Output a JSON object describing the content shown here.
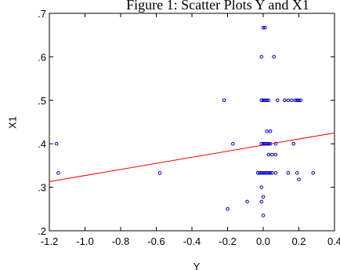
{
  "chart_data": {
    "type": "scatter",
    "title": "Figure 1: Scatter Plots  Y and X1",
    "xlabel": "Y",
    "ylabel": "X1",
    "xlim": [
      -1.2,
      0.4
    ],
    "ylim": [
      0.2,
      0.7
    ],
    "grid": false,
    "x_ticks": [
      -1.2,
      -1.0,
      -0.8,
      -0.6,
      -0.4,
      -0.2,
      0.0,
      0.2,
      0.4
    ],
    "x_tick_labels": [
      "-1.2",
      "-1.0",
      "-0.8",
      "-0.6",
      "-0.4",
      "-0.2",
      "0.0",
      "0.2",
      "0.4"
    ],
    "y_ticks": [
      0.2,
      0.3,
      0.4,
      0.5,
      0.6,
      0.7
    ],
    "y_tick_labels": [
      ".2",
      ".3",
      ".4",
      ".5",
      ".6",
      ".7"
    ],
    "point_color": "#0000cc",
    "fit_line_color": "#ff0000",
    "fit_line": {
      "x": [
        -1.2,
        0.4
      ],
      "y": [
        0.313,
        0.425
      ]
    },
    "points": [
      [
        -1.16,
        0.4
      ],
      [
        -1.15,
        0.333
      ],
      [
        -0.58,
        0.333
      ],
      [
        -0.22,
        0.5
      ],
      [
        -0.17,
        0.4
      ],
      [
        -0.2,
        0.25
      ],
      [
        -0.09,
        0.267
      ],
      [
        -0.03,
        0.333
      ],
      [
        -0.02,
        0.333
      ],
      [
        -0.01,
        0.333
      ],
      [
        0.0,
        0.333
      ],
      [
        0.01,
        0.333
      ],
      [
        0.02,
        0.333
      ],
      [
        0.03,
        0.333
      ],
      [
        0.04,
        0.333
      ],
      [
        0.05,
        0.333
      ],
      [
        0.07,
        0.333
      ],
      [
        0.14,
        0.333
      ],
      [
        0.19,
        0.333
      ],
      [
        0.28,
        0.333
      ],
      [
        -0.01,
        0.6
      ],
      [
        0.06,
        0.6
      ],
      [
        0.0,
        0.667
      ],
      [
        0.01,
        0.667
      ],
      [
        -0.01,
        0.5
      ],
      [
        0.0,
        0.5
      ],
      [
        0.01,
        0.5
      ],
      [
        0.02,
        0.5
      ],
      [
        0.03,
        0.5
      ],
      [
        0.08,
        0.5
      ],
      [
        0.12,
        0.5
      ],
      [
        0.14,
        0.5
      ],
      [
        0.16,
        0.5
      ],
      [
        0.18,
        0.5
      ],
      [
        0.19,
        0.5
      ],
      [
        0.2,
        0.5
      ],
      [
        0.21,
        0.5
      ],
      [
        -0.01,
        0.4
      ],
      [
        0.0,
        0.4
      ],
      [
        0.01,
        0.4
      ],
      [
        0.02,
        0.4
      ],
      [
        0.03,
        0.4
      ],
      [
        0.04,
        0.4
      ],
      [
        0.07,
        0.4
      ],
      [
        0.17,
        0.4
      ],
      [
        0.02,
        0.429
      ],
      [
        0.04,
        0.429
      ],
      [
        0.03,
        0.375
      ],
      [
        0.05,
        0.375
      ],
      [
        0.07,
        0.375
      ],
      [
        -0.01,
        0.3
      ],
      [
        0.0,
        0.278
      ],
      [
        -0.01,
        0.267
      ],
      [
        0.0,
        0.235
      ],
      [
        0.2,
        0.318
      ]
    ]
  }
}
